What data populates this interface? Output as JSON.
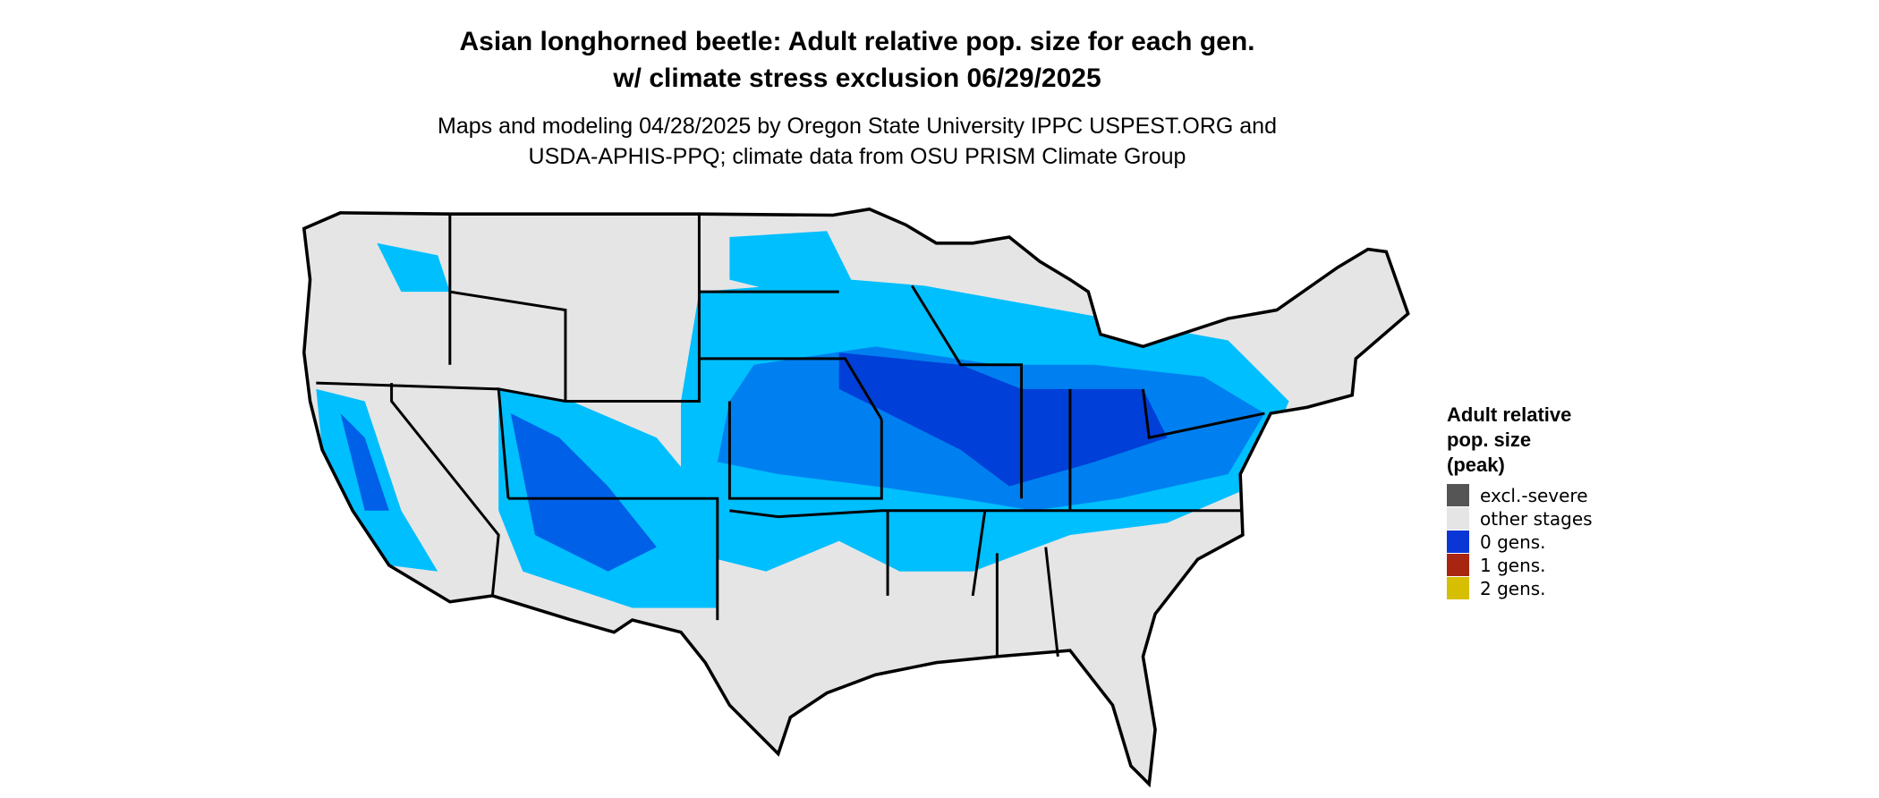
{
  "header": {
    "title": [
      "Asian longhorned beetle: Adult relative pop. size for each gen.",
      "w/ climate stress exclusion 06/29/2025"
    ],
    "subtitle": [
      "Maps and modeling 04/28/2025 by Oregon State University IPPC USPEST.ORG and",
      "USDA-APHIS-PPQ; climate data from OSU PRISM Climate Group"
    ]
  },
  "legend": {
    "title": [
      "Adult relative",
      "pop. size",
      "(peak)"
    ],
    "items": [
      {
        "label": "excl.-severe",
        "color": "#555555"
      },
      {
        "label": "other stages",
        "color": "#e5e5e5"
      },
      {
        "label": "0 gens.",
        "color": "#0a36d6"
      },
      {
        "label": "1 gens.",
        "color": "#a8250f"
      },
      {
        "label": "2 gens.",
        "color": "#d6be00"
      }
    ]
  }
}
